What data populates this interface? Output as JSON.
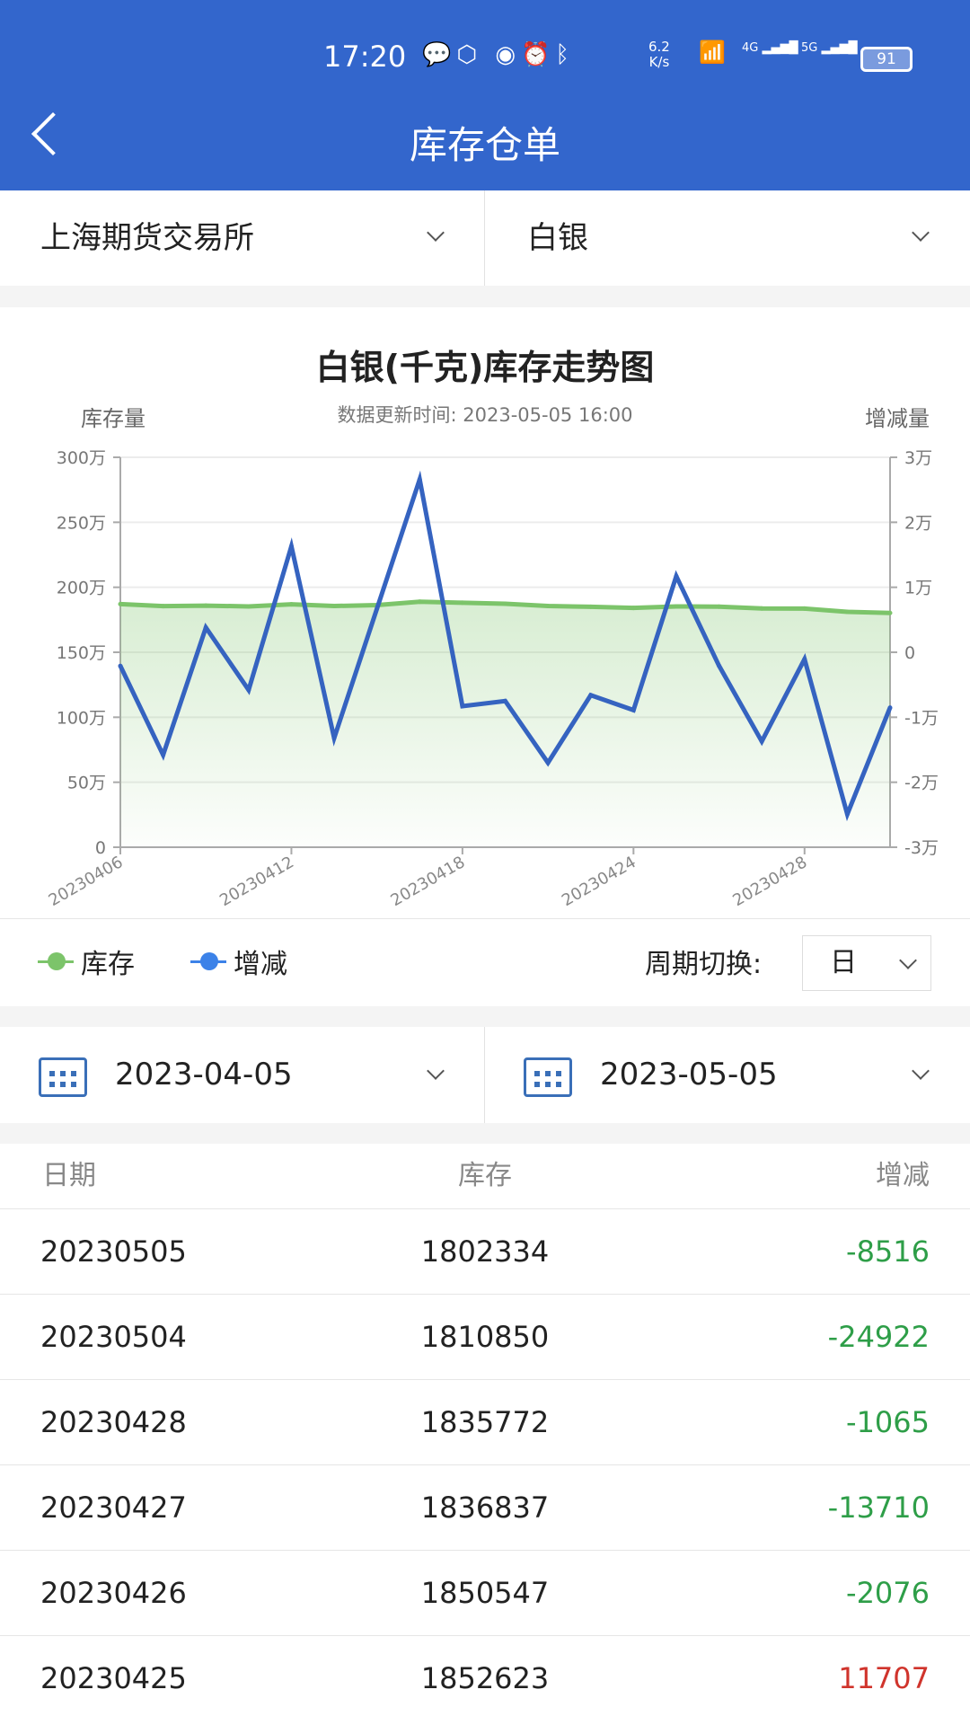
{
  "status_bar": {
    "time": "17:20",
    "net_speed_value": "6.2",
    "net_speed_unit": "K/s",
    "battery": "91",
    "icons": [
      "wechat-icon",
      "hand-icon",
      "eye-icon",
      "alarm-icon",
      "bluetooth-icon",
      "wifi-icon",
      "signal-4g-icon",
      "signal-5g-icon",
      "battery-icon"
    ],
    "net_4g": "4G",
    "net_5g": "5G"
  },
  "header": {
    "title": "库存仓单"
  },
  "selectors": {
    "exchange": "上海期货交易所",
    "commodity": "白银"
  },
  "chart_card": {
    "title": "白银(千克)库存走势图",
    "left_axis_label": "库存量",
    "right_axis_label": "增减量",
    "update_time": "数据更新时间: 2023-05-05 16:00"
  },
  "chart_data": {
    "type": "line",
    "title": "白银(千克)库存走势图",
    "x": [
      "20230406",
      "20230407",
      "20230410",
      "20230411",
      "20230412",
      "20230413",
      "20230414",
      "20230417",
      "20230418",
      "20230419",
      "20230420",
      "20230421",
      "20230424",
      "20230425",
      "20230426",
      "20230427",
      "20230428",
      "20230504",
      "20230505"
    ],
    "x_tick_labels": [
      "20230406",
      "20230412",
      "20230418",
      "20230424",
      "20230428"
    ],
    "series": [
      {
        "name": "库存",
        "axis": "left",
        "type": "area",
        "color": "#7CC46A",
        "values": [
          1870600,
          1854800,
          1858600,
          1852800,
          1869100,
          1855900,
          1862600,
          1889200,
          1880900,
          1873400,
          1856400,
          1849800,
          1840916,
          1852623,
          1850547,
          1836837,
          1835772,
          1810850,
          1802334
        ]
      },
      {
        "name": "增减",
        "axis": "right",
        "type": "line",
        "color": "#3563C0",
        "values": [
          -2100,
          -15800,
          3800,
          -5800,
          16300,
          -13200,
          6700,
          26600,
          -8300,
          -7500,
          -17000,
          -6600,
          -8900,
          11707,
          -2076,
          -13710,
          -1065,
          -24922,
          -8516
        ]
      }
    ],
    "ylabel_left": "库存量",
    "ylabel_right": "增减量",
    "ylim_left": [
      0,
      3000000
    ],
    "ylim_right": [
      -30000,
      30000
    ],
    "left_ticks": [
      "0",
      "50万",
      "100万",
      "150万",
      "200万",
      "250万",
      "300万"
    ],
    "right_ticks": [
      "-3万",
      "-2万",
      "-1万",
      "0",
      "1万",
      "2万",
      "3万"
    ],
    "grid": true,
    "legend": "bottom-left"
  },
  "legend": {
    "stock": "库存",
    "change": "增减",
    "period_label": "周期切换:",
    "period_value": "日"
  },
  "date_range": {
    "start": "2023-04-05",
    "end": "2023-05-05"
  },
  "table": {
    "headers": [
      "日期",
      "库存",
      "增减"
    ],
    "rows": [
      {
        "date": "20230505",
        "stock": "1802334",
        "change": "-8516",
        "dir": "down"
      },
      {
        "date": "20230504",
        "stock": "1810850",
        "change": "-24922",
        "dir": "down"
      },
      {
        "date": "20230428",
        "stock": "1835772",
        "change": "-1065",
        "dir": "down"
      },
      {
        "date": "20230427",
        "stock": "1836837",
        "change": "-13710",
        "dir": "down"
      },
      {
        "date": "20230426",
        "stock": "1850547",
        "change": "-2076",
        "dir": "down"
      },
      {
        "date": "20230425",
        "stock": "1852623",
        "change": "11707",
        "dir": "up"
      }
    ],
    "colors": {
      "down": "#2E9E48",
      "up": "#D0342C"
    }
  }
}
